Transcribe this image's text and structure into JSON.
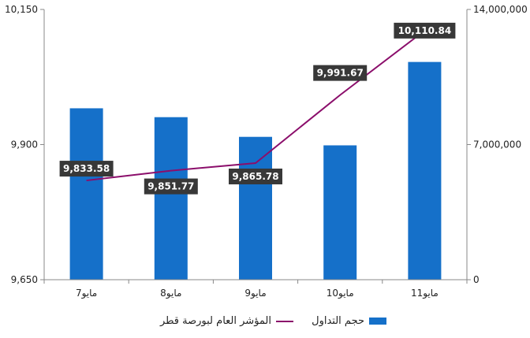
{
  "chart_data": {
    "type": "bar+line",
    "categories": [
      "مايو7",
      "مايو8",
      "مايو9",
      "مايو10",
      "مايو11"
    ],
    "bars": {
      "name": "حجم التداول",
      "axis": "right",
      "values": [
        8880000,
        8420000,
        7400000,
        6960000,
        11280000
      ],
      "color": "#1570c9"
    },
    "line": {
      "name": "المؤشر العام لبورصة قطر",
      "axis": "left",
      "values": [
        9833.58,
        9851.77,
        9865.78,
        9991.67,
        10110.84
      ],
      "color": "#8b0e6b"
    },
    "data_labels": [
      "9,833.58",
      "9,851.77",
      "9,865.78",
      "9,991.67",
      "10,110.84"
    ],
    "left_axis": {
      "min": 9650,
      "max": 10150,
      "ticks": [
        "9,650",
        "9,900",
        "10,150"
      ]
    },
    "right_axis": {
      "min": 0,
      "max": 14000000,
      "ticks": [
        "0",
        "7,000,000",
        "14,000,000"
      ]
    },
    "grid": false,
    "legend_position": "bottom"
  }
}
